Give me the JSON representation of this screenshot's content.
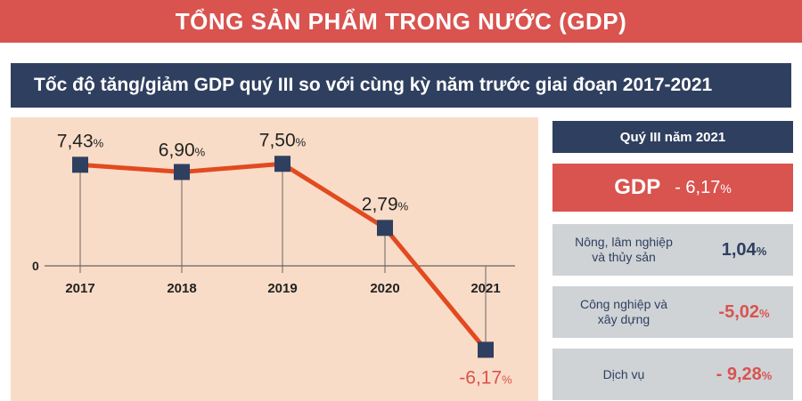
{
  "header": {
    "title": "TỔNG SẢN PHẨM TRONG NƯỚC (GDP)",
    "subtitle": "Tốc độ tăng/giảm GDP quý III so với cùng kỳ năm trước giai đoạn 2017-2021"
  },
  "chart_data": {
    "type": "line",
    "title": "Tốc độ tăng/giảm GDP quý III so với cùng kỳ năm trước giai đoạn 2017-2021",
    "categories": [
      "2017",
      "2018",
      "2019",
      "2020",
      "2021"
    ],
    "values": [
      7.43,
      6.9,
      7.5,
      2.79,
      -6.17
    ],
    "value_labels": [
      "7,43",
      "6,90",
      "7,50",
      "2,79",
      "-6,17"
    ],
    "unit": "%",
    "zero_label": "0",
    "ylim": [
      -8,
      10
    ],
    "grid": false,
    "line_color": "#e24a1f",
    "marker_color": "#2f3f5f"
  },
  "side": {
    "header": "Quý III năm 2021",
    "gdp_label": "GDP",
    "gdp_value": "- 6,17",
    "pct": "%",
    "rows": [
      {
        "label_line1": "Nông, lâm nghiệp",
        "label_line2": "và thủy sản",
        "value": "1,04"
      },
      {
        "label_line1": "Công nghiệp và",
        "label_line2": "xây dựng",
        "value": "-5,02"
      },
      {
        "label_line1": "Dịch vụ",
        "label_line2": "",
        "value": "- 9,28"
      }
    ]
  },
  "colors": {
    "accent_red": "#d9534f",
    "navy": "#2f3f5f",
    "panel_bg": "#f9dcc7",
    "row_bg": "#cfd3d6"
  }
}
